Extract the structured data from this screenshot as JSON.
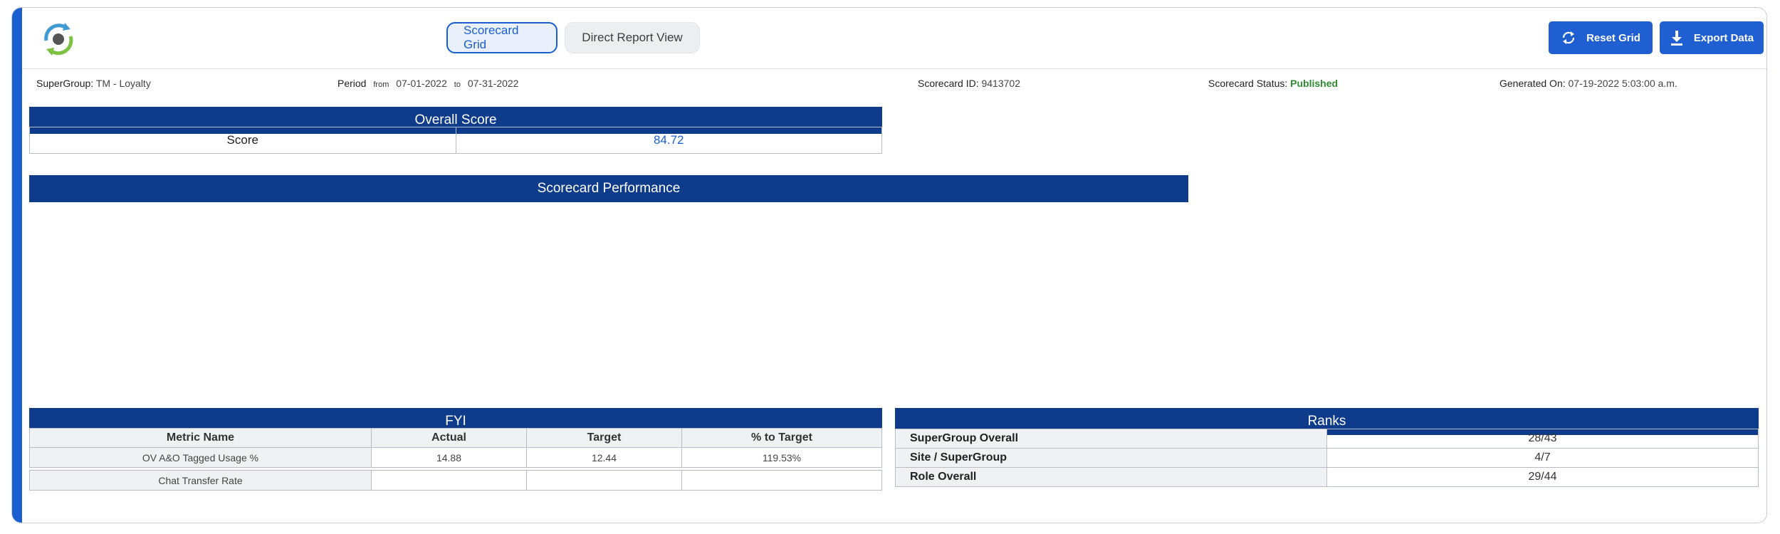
{
  "header": {
    "tabs": [
      {
        "label": "Scorecard Grid",
        "active": true
      },
      {
        "label": "Direct Report View",
        "active": false
      }
    ],
    "reset_label": "Reset Grid",
    "export_label": "Export Data"
  },
  "info": {
    "supergroup_label": "SuperGroup:",
    "supergroup_value": "TM - Loyalty",
    "period_label": "Period",
    "period_from_label": "from",
    "period_from": "07-01-2022",
    "period_to_label": "to",
    "period_to": "07-31-2022",
    "scorecard_id_label": "Scorecard ID:",
    "scorecard_id": "9413702",
    "status_label": "Scorecard Status:",
    "status_value": "Published",
    "generated_label": "Generated On:",
    "generated_value": "07-19-2022 5:03:00 a.m."
  },
  "overall": {
    "title": "Overall Score",
    "score_label": "Score",
    "score_value": "84.72"
  },
  "performance": {
    "title": "Scorecard Performance"
  },
  "fyi": {
    "title": "FYI",
    "columns": [
      "Metric Name",
      "Actual",
      "Target",
      "% to Target"
    ],
    "rows": [
      [
        "OV A&O Tagged Usage %",
        "14.88",
        "12.44",
        "119.53%"
      ],
      [
        "Chat Transfer Rate",
        "",
        "",
        ""
      ]
    ]
  },
  "ranks": {
    "title": "Ranks",
    "rows": [
      {
        "label": "SuperGroup Overall",
        "value": "28/43"
      },
      {
        "label": "Site / SuperGroup",
        "value": "4/7"
      },
      {
        "label": "Role Overall",
        "value": "29/44"
      }
    ]
  },
  "colors": {
    "accent": "#1a5fd0",
    "section_header": "#0e3b8a",
    "status_published": "#2e8b2e"
  }
}
